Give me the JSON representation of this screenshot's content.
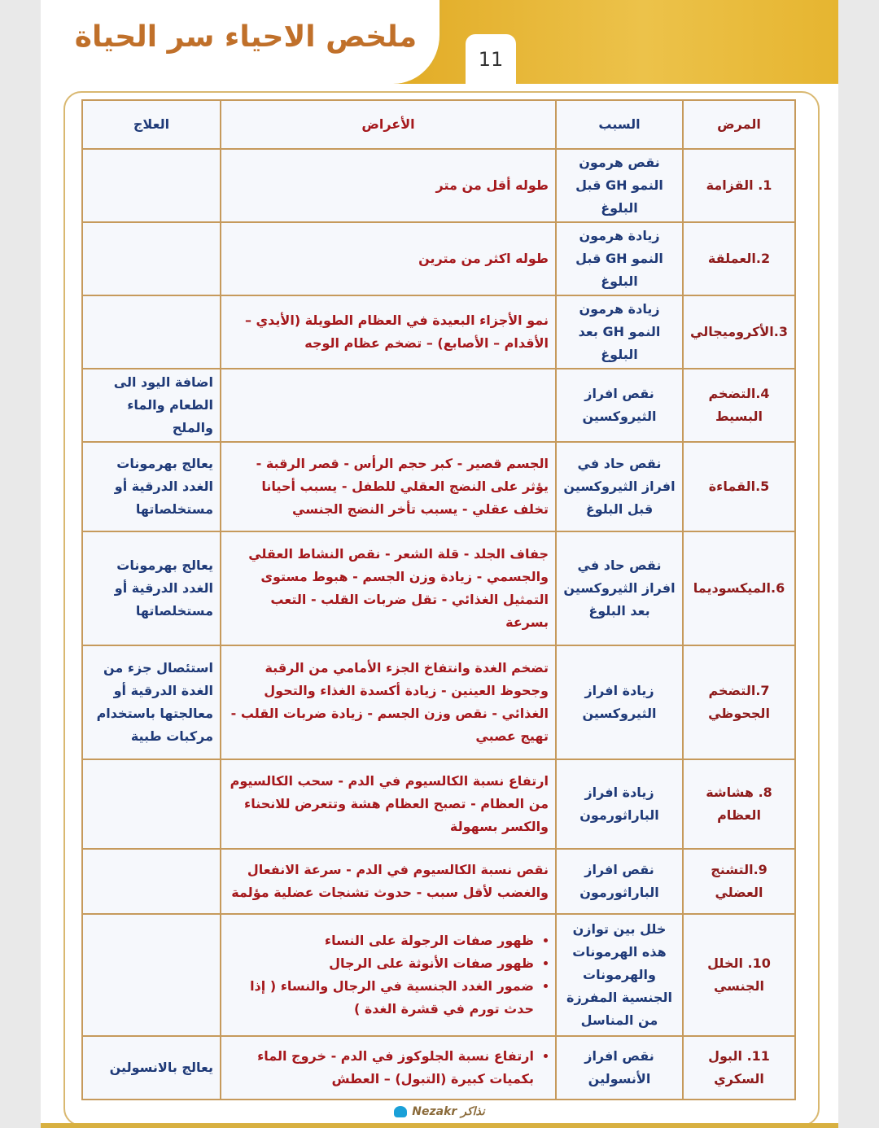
{
  "header": {
    "title": "ملخص الاحياء سر الحياة",
    "page_number": "11"
  },
  "table": {
    "columns": [
      "المرض",
      "السبب",
      "الأعراض",
      "العلاج"
    ],
    "rows": [
      {
        "disease": "1. القزامة",
        "cause": "نقص هرمون النمو GH قبل البلوغ",
        "symptoms": "طوله أقل من متر",
        "treatment": ""
      },
      {
        "disease": "2.العملقة",
        "cause": "زيادة هرمون النمو GH قبل البلوغ",
        "symptoms": "طوله اكثر من مترين",
        "treatment": ""
      },
      {
        "disease": "3.الأكروميجالي",
        "cause": "زيادة هرمون النمو GH بعد البلوغ",
        "symptoms": "نمو الأجزاء البعيدة في العظام الطويلة (الأيدي – الأقدام – الأصابع) – تضخم عظام الوجه",
        "treatment": ""
      },
      {
        "disease": "4.التضخم البسيط",
        "cause": "نقص افراز الثيروكسين",
        "symptoms": "",
        "treatment": "اضافة اليود الى الطعام والماء والملح"
      },
      {
        "disease": "5.القماءة",
        "cause": "نقص حاد في افراز الثيروكسين قبل البلوغ",
        "symptoms": "الجسم قصير - كبر حجم الرأس - قصر الرقبة - يؤثر على النضج العقلي للطفل - يسبب أحيانا تخلف عقلي - يسبب تأخر النضج الجنسي",
        "treatment": "يعالج بهرمونات الغدد الدرقية أو مستخلصاتها"
      },
      {
        "disease": "6.الميكسوديما",
        "cause": "نقص حاد في افراز الثيروكسين بعد البلوغ",
        "symptoms": "جفاف الجلد - قلة الشعر - نقص النشاط العقلي والجسمي - زيادة وزن الجسم - هبوط مستوى التمثيل الغذائي - تقل ضربات القلب - التعب بسرعة",
        "treatment": "يعالج بهرمونات الغدد الدرقية أو مستخلصاتها"
      },
      {
        "disease": "7.التضخم الجحوظي",
        "cause": "زيادة افراز الثيروكسين",
        "symptoms": "تضخم الغدة وانتفاخ الجزء الأمامي من الرقبة وجحوظ العينين - زيادة أكسدة الغذاء والتحول الغذائي - نقص وزن الجسم - زيادة ضربات القلب - تهيج عصبي",
        "treatment": "استئصال جزء من الغدة الدرقية أو معالجتها باستخدام مركبات طبية"
      },
      {
        "disease": "8. هشاشة العظام",
        "cause": "زيادة افراز الباراثورمون",
        "symptoms": "ارتفاع نسبة الكالسيوم في الدم - سحب الكالسيوم من العظام - تصبح العظام هشة وتتعرض للانحناء والكسر بسهولة",
        "treatment": ""
      },
      {
        "disease": "9.التشنج العضلي",
        "cause": "نقص افراز الباراثورمون",
        "symptoms": "نقص نسبة الكالسيوم في الدم - سرعة الانفعال والغضب لأقل سبب - حدوث تشنجات عضلية مؤلمة",
        "treatment": ""
      },
      {
        "disease": "10. الخلل الجنسي",
        "cause": "خلل بين توازن هذه الهرمونات والهرمونات الجنسية المفرزة من المناسل",
        "symptoms_list": [
          "ظهور صفات الرجولة على النساء",
          "ظهور صفات الأنوثة على الرجال",
          "ضمور الغدد الجنسية في الرجال والنساء ( إذا حدث تورم في قشرة الغدة )"
        ],
        "treatment": ""
      },
      {
        "disease": "11. البول السكري",
        "cause": "نقص افراز الأنسولين",
        "symptoms_list": [
          "ارتفاع نسبة الجلوكوز في الدم - خروج الماء بكميات كبيرة (التبول) – العطش"
        ],
        "treatment": "يعالج بالانسولين"
      }
    ]
  },
  "watermark": {
    "text": "Nezakr نذاكر"
  },
  "colors": {
    "banner": "#e0a820",
    "title": "#c0702a",
    "disease": "#8e1b1b",
    "cause": "#1f3a78",
    "symptoms": "#a5181c",
    "border": "#c69a5c"
  }
}
